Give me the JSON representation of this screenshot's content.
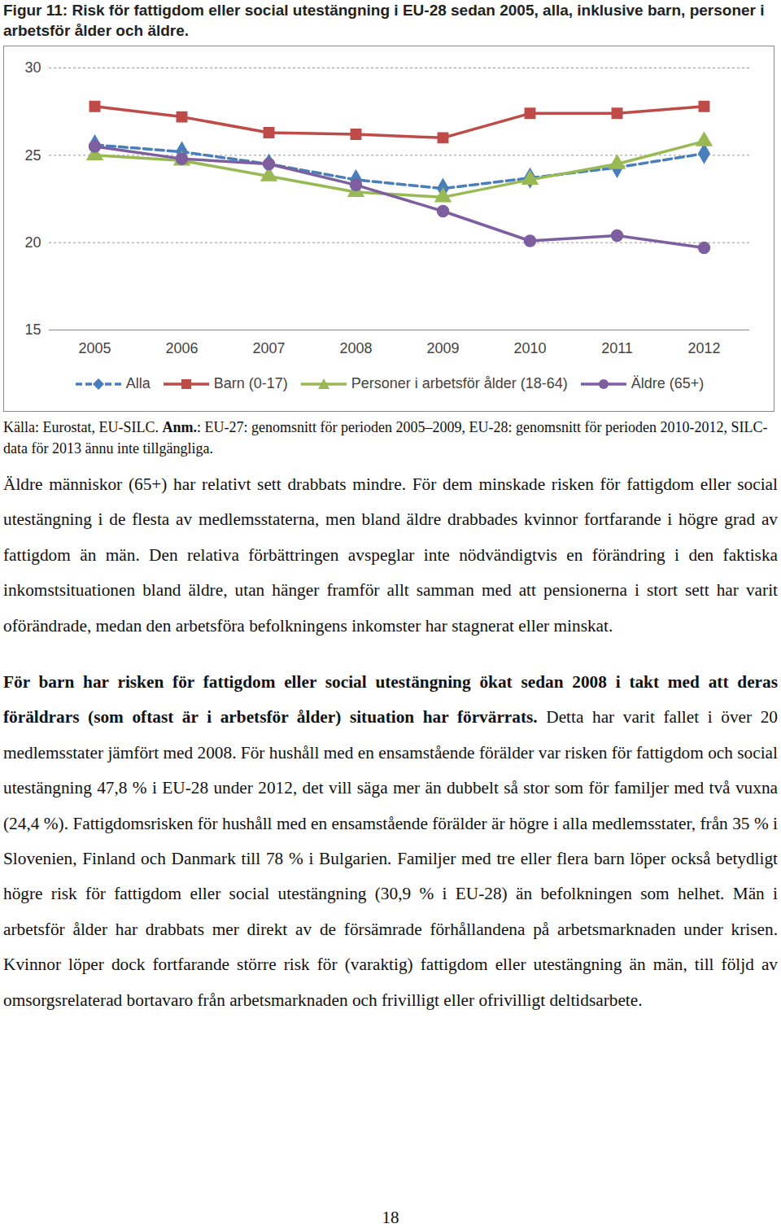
{
  "chart_data": {
    "type": "line",
    "title": "Figur 11: Risk för fattigdom eller social utestängning i EU-28 sedan 2005, alla, inklusive barn, personer i arbetsför ålder och äldre.",
    "x": [
      2005,
      2006,
      2007,
      2008,
      2009,
      2010,
      2011,
      2012
    ],
    "ylim": [
      15,
      30
    ],
    "yticks": [
      15,
      20,
      25,
      30
    ],
    "grid": true,
    "legend": "bottom",
    "series": [
      {
        "name": "Alla",
        "color": "#4a7ebb",
        "marker": "diamond",
        "line_style": "dashed",
        "values": [
          25.6,
          25.2,
          24.5,
          23.6,
          23.1,
          23.7,
          24.3,
          25.1
        ]
      },
      {
        "name": "Barn (0-17)",
        "color": "#be4b48",
        "marker": "square",
        "line_style": "solid",
        "values": [
          27.8,
          27.2,
          26.3,
          26.2,
          26.0,
          27.4,
          27.4,
          27.8
        ]
      },
      {
        "name": "Personer i arbetsför ålder (18-64)",
        "color": "#98b954",
        "marker": "triangle",
        "line_style": "solid",
        "values": [
          25.0,
          24.7,
          23.8,
          22.9,
          22.6,
          23.6,
          24.5,
          25.8
        ]
      },
      {
        "name": "Äldre (65+)",
        "color": "#7d5fa0",
        "marker": "circle",
        "line_style": "solid",
        "values": [
          25.5,
          24.8,
          24.5,
          23.3,
          21.8,
          20.1,
          20.4,
          19.7
        ]
      }
    ]
  },
  "caption": {
    "source": "Källa: Eurostat, EU-SILC.",
    "note_label": "Anm.",
    "note": ": EU-27: genomsnitt för perioden 2005–2009, EU-28: genomsnitt för perioden 2010-2012, SILC-data för 2013 ännu inte tillgängliga."
  },
  "paragraphs": [
    {
      "bold": "",
      "text": "Äldre människor (65+) har relativt sett drabbats mindre. För dem minskade risken för fattigdom eller social utestängning i de flesta av medlemsstaterna, men bland äldre drabbades kvinnor fortfarande i högre grad av fattigdom än män. Den relativa förbättringen avspeglar inte nödvändigtvis en förändring i den faktiska inkomstsituationen bland äldre, utan hänger framför allt samman med att pensionerna i stort sett har varit oförändrade, medan den arbetsföra befolkningens inkomster har stagnerat eller minskat."
    },
    {
      "bold": "För barn har risken för fattigdom eller social utestängning ökat sedan 2008 i takt med att deras föräldrars (som oftast är i arbetsför ålder) situation har förvärrats.",
      "text": " Detta har varit fallet i över 20 medlemsstater jämfört med 2008. För hushåll med en ensamstående förälder var risken för fattigdom och social utestängning 47,8 % i EU-28 under 2012, det vill säga mer än dubbelt så stor som för familjer med två vuxna (24,4 %). Fattigdomsrisken för hushåll med en ensamstående förälder är högre i alla medlemsstater, från 35 % i Slovenien, Finland och Danmark till 78 % i Bulgarien. Familjer med tre eller flera barn löper också betydligt högre risk för fattigdom eller social utestängning (30,9 % i EU-28) än befolkningen som helhet. Män i arbetsför ålder har drabbats mer direkt av de försämrade förhållandena på arbetsmarknaden under krisen. Kvinnor löper dock fortfarande större risk för (varaktig) fattigdom eller utestängning än män, till följd av omsorgsrelaterad bortavaro från arbetsmarknaden och frivilligt eller ofrivilligt deltidsarbete."
    }
  ],
  "page_number": "18"
}
